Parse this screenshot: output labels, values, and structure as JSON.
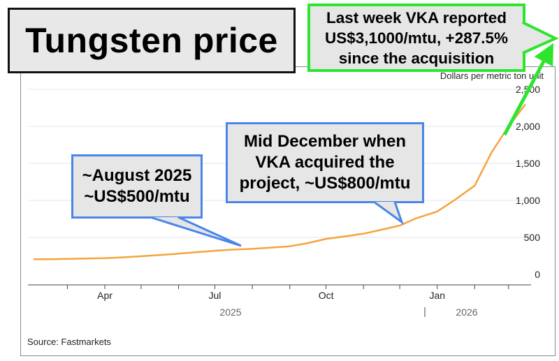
{
  "title": "Tungsten price",
  "unit_label": "Dollars per metric ton unit",
  "source": "Source: Fastmarkets",
  "colors": {
    "line": "#f5a33d",
    "callout_blue_border": "#4a86e8",
    "callout_green_border": "#2ee52e",
    "callout_fill": "#e6e6e6",
    "arrow": "#2ee52e"
  },
  "callouts": {
    "august": {
      "lines": [
        "~August 2025",
        "~US$500/mtu"
      ]
    },
    "december": {
      "lines": [
        "Mid December when",
        "VKA acquired the",
        "project, ~US$800/mtu"
      ]
    },
    "last_week": {
      "lines": [
        "Last week VKA reported",
        "US$3,1000/mtu, +287.5%",
        "since the acquisition"
      ]
    }
  },
  "chart_data": {
    "type": "line",
    "title": "Tungsten price",
    "ylabel": "Dollars per metric ton unit",
    "ylim": [
      0,
      2500
    ],
    "y_ticks": [
      0,
      500,
      1000,
      1500,
      2000,
      2500
    ],
    "y_tick_labels": [
      "0",
      "500",
      "1,000",
      "1,500",
      "2,000",
      "2,500"
    ],
    "x_tick_labels": [
      "Apr",
      "Jul",
      "Oct",
      "Jan"
    ],
    "x_tick_dates": [
      "2025-04-01",
      "2025-07-01",
      "2025-10-01",
      "2026-01-01"
    ],
    "year_labels": [
      "2025",
      "2026"
    ],
    "grid": true,
    "series": [
      {
        "x": [
          "2025-02-01",
          "2025-02-15",
          "2025-03-01",
          "2025-03-15",
          "2025-04-01",
          "2025-04-15",
          "2025-05-01",
          "2025-05-15",
          "2025-06-01",
          "2025-06-15",
          "2025-07-01",
          "2025-07-15",
          "2025-08-01",
          "2025-08-15",
          "2025-09-01",
          "2025-09-15",
          "2025-10-01",
          "2025-10-15",
          "2025-11-01",
          "2025-11-15",
          "2025-12-01",
          "2025-12-15",
          "2026-01-01",
          "2026-01-15",
          "2026-02-01",
          "2026-02-15",
          "2026-03-01",
          "2026-03-15"
        ],
        "values": [
          205,
          205,
          210,
          215,
          220,
          230,
          245,
          260,
          280,
          300,
          320,
          335,
          345,
          360,
          380,
          420,
          480,
          510,
          550,
          600,
          660,
          760,
          850,
          1000,
          1200,
          1650,
          2000,
          2300
        ]
      }
    ]
  }
}
